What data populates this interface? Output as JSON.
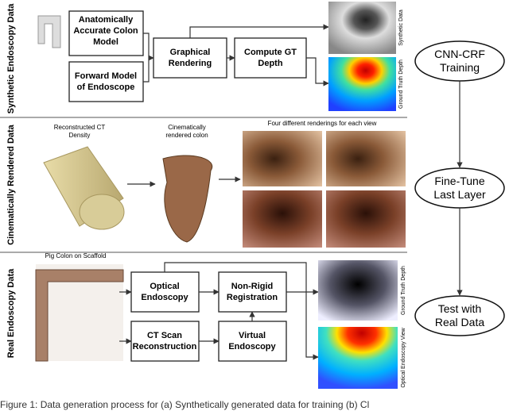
{
  "sections": [
    {
      "label": "Synthetic Endoscopy Data"
    },
    {
      "label": "Cinematically Rendered Data"
    },
    {
      "label": "Real Endoscopy Data"
    }
  ],
  "synthetic": {
    "boxes": [
      [
        "Anatomically",
        "Accurate Colon",
        "Model"
      ],
      [
        "Forward Model",
        "of Endoscope"
      ],
      [
        "Graphical",
        "Rendering"
      ],
      [
        "Compute GT",
        "Depth"
      ]
    ],
    "image_labels": [
      "Synthetic Data",
      "Ground Truth Depth"
    ]
  },
  "cinematic": {
    "ct_label": [
      "Reconstructed CT",
      "Density"
    ],
    "colon_label": [
      "Cinematically",
      "rendered colon"
    ],
    "renderings_label": "Four different renderings for each view"
  },
  "real": {
    "scaffold_label": "Pig Colon on Scaffold",
    "boxes": [
      [
        "Optical",
        "Endoscopy"
      ],
      [
        "CT Scan",
        "Reconstruction"
      ],
      [
        "Non-Rigid",
        "Registration"
      ],
      [
        "Virtual",
        "Endoscopy"
      ]
    ],
    "image_labels": [
      "Ground Truth Depth",
      "Optical Endoscopy View"
    ]
  },
  "pipeline": [
    [
      "CNN-CRF",
      "Training"
    ],
    [
      "Fine-Tune",
      "Last Layer"
    ],
    [
      "Test with",
      "Real Data"
    ]
  ],
  "caption": "Figure 1: Data generation process for (a) Synthetically generated data for training (b) Cl"
}
